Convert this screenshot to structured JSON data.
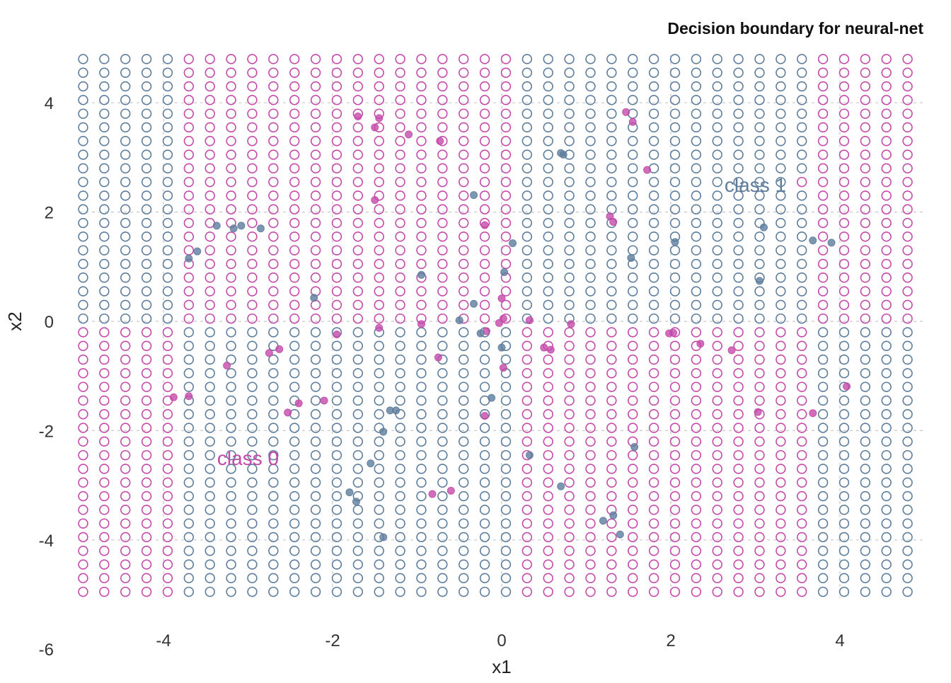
{
  "chart_data": {
    "type": "scatter",
    "title": "Decision boundary for neural-net",
    "xlabel": "x1",
    "ylabel": "x2",
    "xlim": [
      -5,
      5
    ],
    "ylim": [
      -6,
      5
    ],
    "x_ticks": [
      -4,
      -2,
      0,
      2,
      4
    ],
    "y_ticks": [
      -6,
      -4,
      -2,
      0,
      2,
      4
    ],
    "grid": "dashed",
    "colors": {
      "class_0": "#c44aaa",
      "class_1": "#5e7d9c"
    },
    "annotations": [
      {
        "text": "class 1",
        "x": 3.0,
        "y": 2.5,
        "class": 1
      },
      {
        "text": "class 0",
        "x": -3.0,
        "y": -2.5,
        "class": 0
      }
    ],
    "grid_points": {
      "x_start": -4.95,
      "x_step": 0.25,
      "nx": 40,
      "y_start": -4.95,
      "y_step": 0.25,
      "ny": 40,
      "x_breaks": [
        -3.725,
        0.275,
        3.775
      ],
      "y_breaks": [
        -0.05
      ],
      "exceptions": [
        {
          "x": -2.2,
          "y": 2.05,
          "class": 0
        },
        {
          "x": 4.8,
          "y": 3.3,
          "class": 0
        },
        {
          "x": 3.55,
          "y": 2.55,
          "class": 0
        }
      ]
    },
    "series": [
      {
        "name": "class 0",
        "points": [
          [
            -1.7,
            3.75
          ],
          [
            -1.45,
            3.72
          ],
          [
            -1.5,
            3.55
          ],
          [
            -1.1,
            3.42
          ],
          [
            -0.73,
            3.3
          ],
          [
            -1.5,
            2.22
          ],
          [
            -0.2,
            1.76
          ],
          [
            1.47,
            3.83
          ],
          [
            1.55,
            3.65
          ],
          [
            1.72,
            2.77
          ],
          [
            1.28,
            1.92
          ],
          [
            1.32,
            1.82
          ],
          [
            0.0,
            0.42
          ],
          [
            0.02,
            0.05
          ],
          [
            -0.03,
            -0.03
          ],
          [
            -0.95,
            -0.05
          ],
          [
            -0.18,
            -0.18
          ],
          [
            0.33,
            0.02
          ],
          [
            0.82,
            -0.05
          ],
          [
            1.98,
            -0.22
          ],
          [
            2.03,
            -0.21
          ],
          [
            2.35,
            -0.41
          ],
          [
            2.72,
            -0.53
          ],
          [
            0.5,
            -0.48
          ],
          [
            0.58,
            -0.52
          ],
          [
            -0.75,
            -0.66
          ],
          [
            0.02,
            -0.85
          ],
          [
            -1.45,
            -0.12
          ],
          [
            -1.95,
            -0.24
          ],
          [
            -2.63,
            -0.51
          ],
          [
            -2.75,
            -0.58
          ],
          [
            -3.25,
            -0.81
          ],
          [
            -3.88,
            -1.39
          ],
          [
            -3.7,
            -1.37
          ],
          [
            -2.4,
            -1.5
          ],
          [
            -2.1,
            -1.45
          ],
          [
            -2.53,
            -1.67
          ],
          [
            -0.2,
            -1.73
          ],
          [
            3.03,
            -1.66
          ],
          [
            3.68,
            -1.68
          ],
          [
            4.08,
            -1.19
          ],
          [
            -0.82,
            -3.16
          ],
          [
            -0.6,
            -3.1
          ]
        ]
      },
      {
        "name": "class 1",
        "points": [
          [
            -0.33,
            2.31
          ],
          [
            0.73,
            3.05
          ],
          [
            0.7,
            3.08
          ],
          [
            -3.37,
            1.75
          ],
          [
            -3.17,
            1.7
          ],
          [
            -3.08,
            1.75
          ],
          [
            -2.85,
            1.7
          ],
          [
            -3.6,
            1.28
          ],
          [
            -3.7,
            1.15
          ],
          [
            -2.22,
            0.43
          ],
          [
            -0.95,
            0.85
          ],
          [
            0.03,
            0.9
          ],
          [
            0.13,
            1.43
          ],
          [
            1.53,
            1.16
          ],
          [
            2.05,
            1.45
          ],
          [
            3.1,
            1.72
          ],
          [
            3.68,
            1.48
          ],
          [
            3.9,
            1.44
          ],
          [
            3.05,
            0.74
          ],
          [
            -0.33,
            0.32
          ],
          [
            -0.5,
            0.02
          ],
          [
            -0.25,
            -0.22
          ],
          [
            0.0,
            -0.48
          ],
          [
            -0.12,
            -1.4
          ],
          [
            -1.32,
            -1.63
          ],
          [
            -1.25,
            -1.63
          ],
          [
            -1.4,
            -2.02
          ],
          [
            0.33,
            -2.45
          ],
          [
            1.57,
            -2.3
          ],
          [
            -1.55,
            -2.6
          ],
          [
            0.7,
            -3.02
          ],
          [
            -1.8,
            -3.13
          ],
          [
            -1.72,
            -3.3
          ],
          [
            1.2,
            -3.65
          ],
          [
            1.32,
            -3.55
          ],
          [
            1.4,
            -3.9
          ],
          [
            -1.4,
            -3.95
          ]
        ]
      }
    ]
  }
}
